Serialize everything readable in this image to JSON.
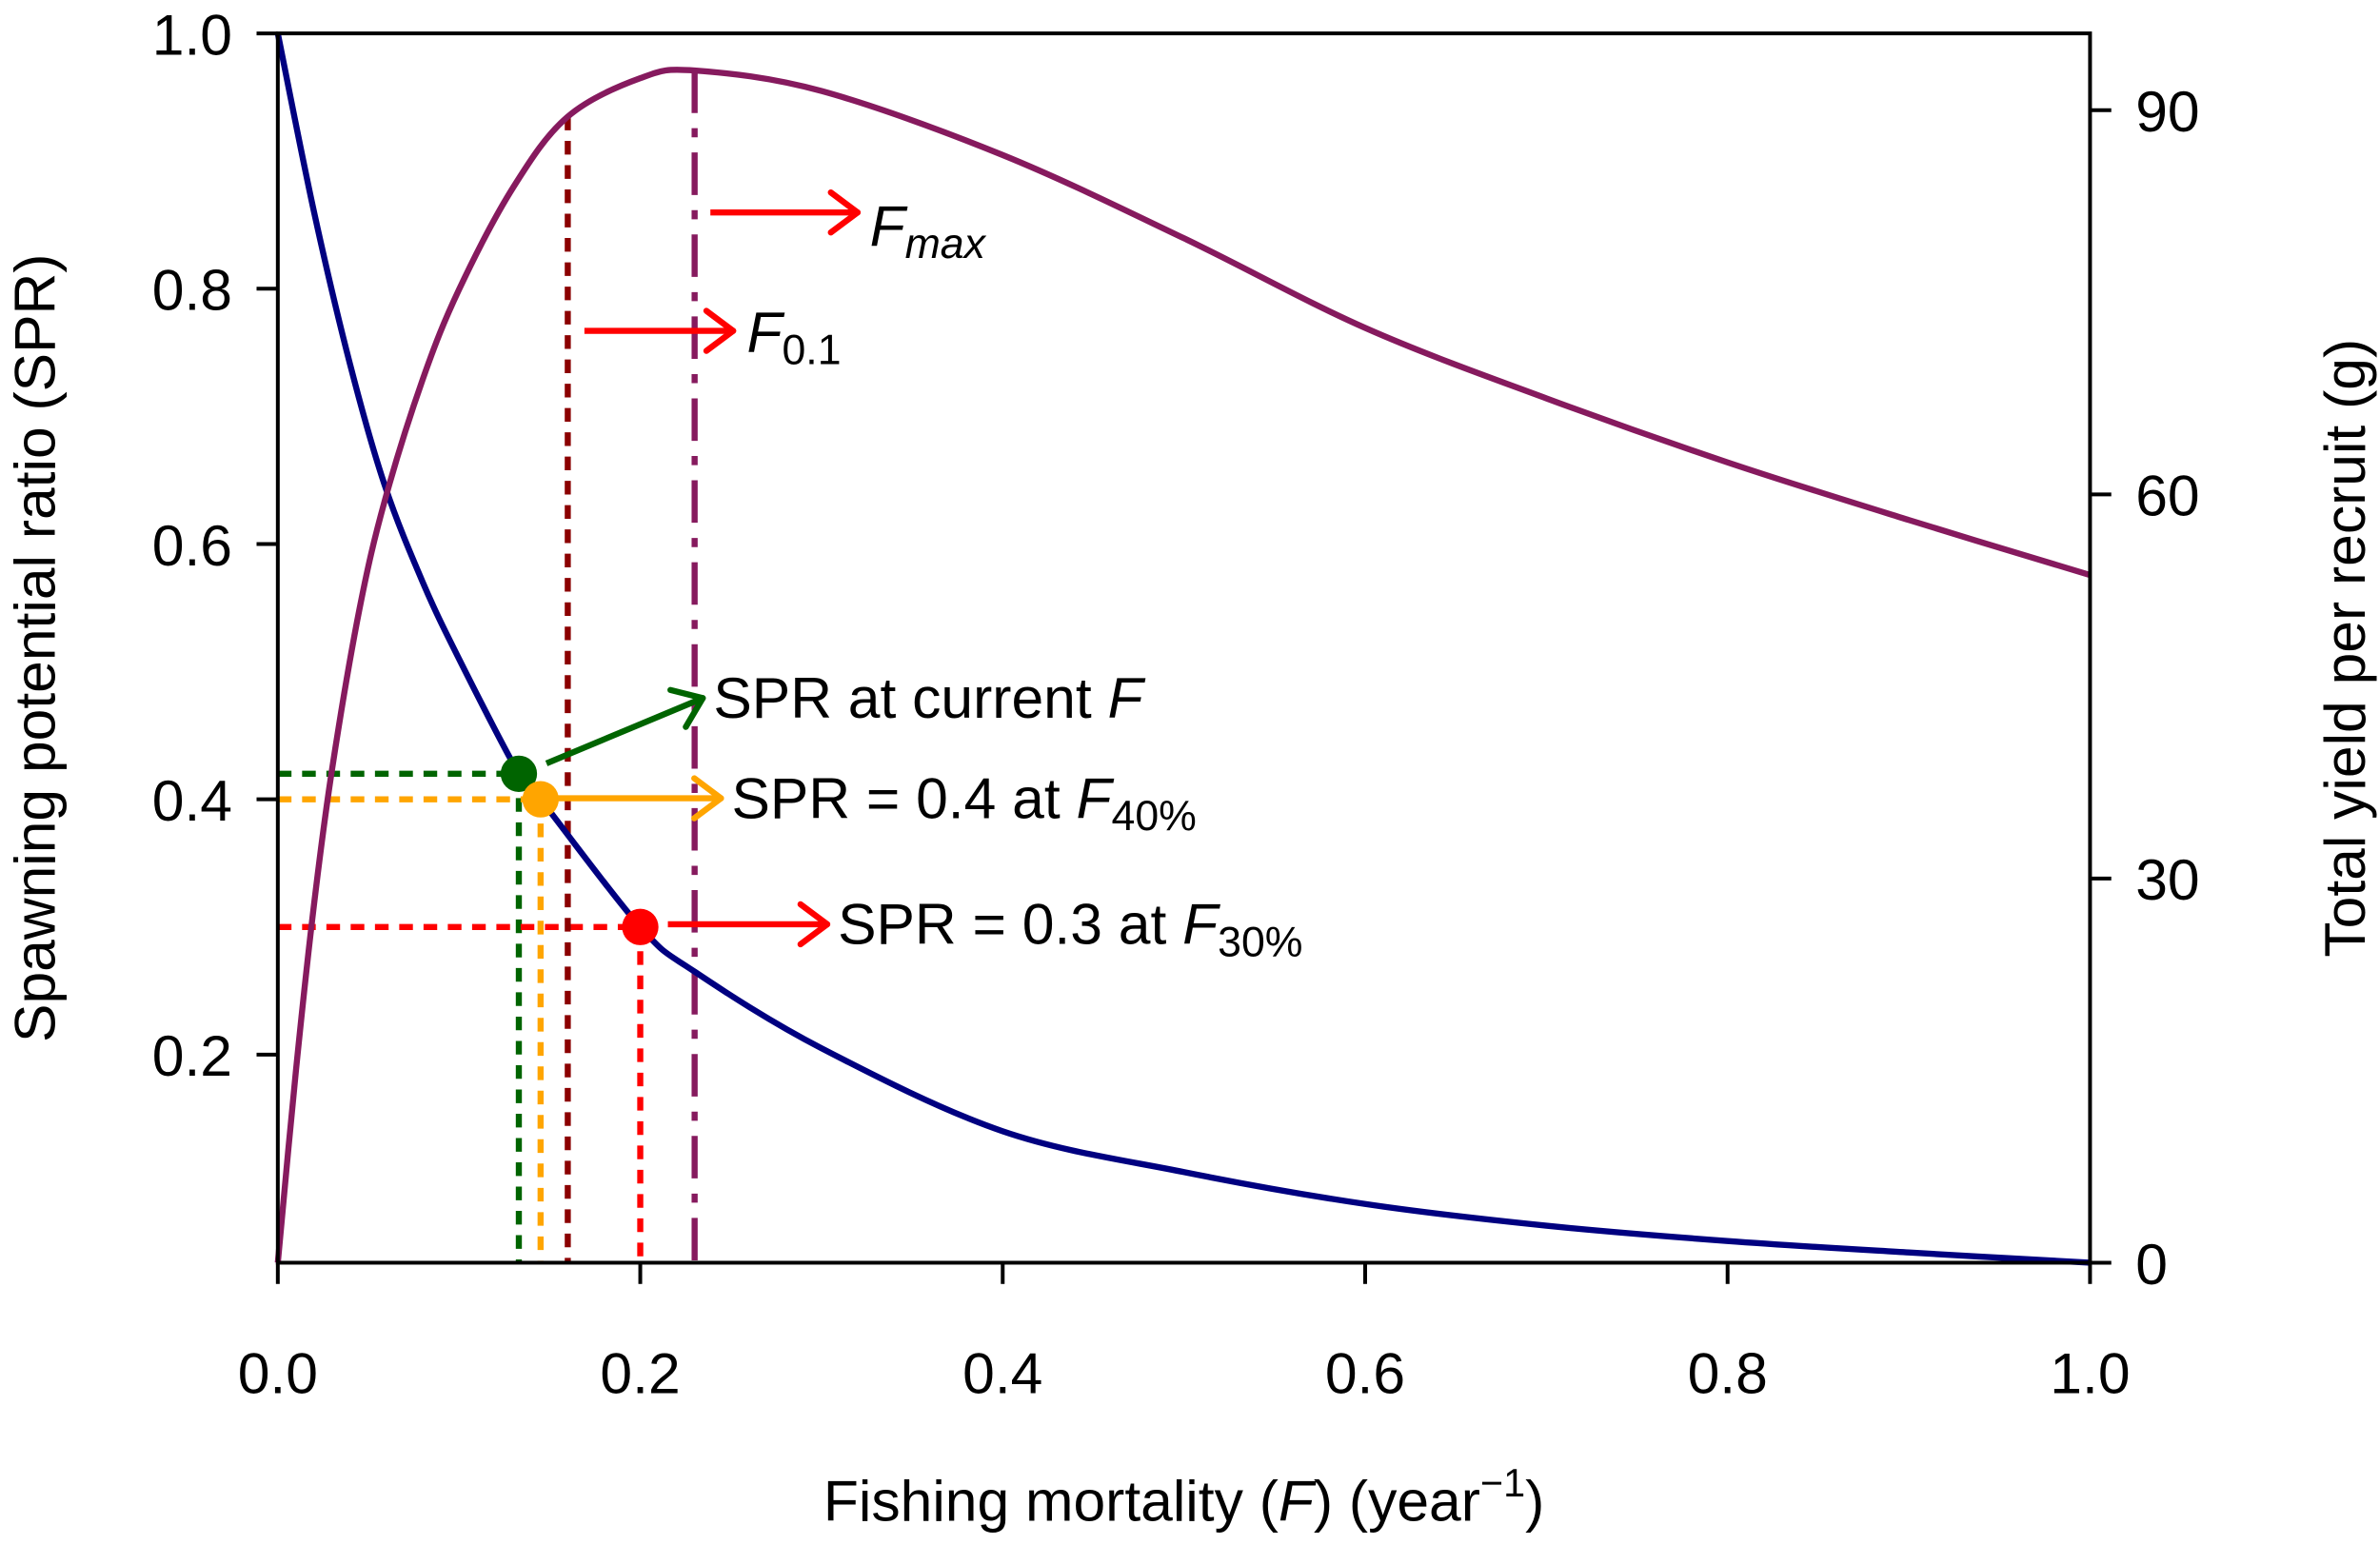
{
  "chart_data": {
    "type": "line",
    "xlabel": {
      "prefix": "Fishing mortality (",
      "italic": "F",
      "middle": ") (year",
      "sup": "−1",
      "suffix": ")"
    },
    "ylabel_left": "Spawning potential ratio (SPR)",
    "ylabel_right": "Total yield per recruit (g)",
    "xlim": [
      0,
      1.0
    ],
    "ylim_left": [
      0.037,
      1.0
    ],
    "ylim_right": [
      0,
      96
    ],
    "x_ticks": [
      "0.0",
      "0.2",
      "0.4",
      "0.6",
      "0.8",
      "1.0"
    ],
    "x_tick_values": [
      0,
      0.2,
      0.4,
      0.6,
      0.8,
      1.0
    ],
    "y_left_ticks": [
      "0.2",
      "0.4",
      "0.6",
      "0.8",
      "1.0"
    ],
    "y_left_tick_values": [
      0.2,
      0.4,
      0.6,
      0.8,
      1.0
    ],
    "y_right_ticks": [
      "0",
      "30",
      "60",
      "90"
    ],
    "y_right_tick_values": [
      0,
      30,
      60,
      90
    ],
    "grid": false,
    "series": [
      {
        "axis": "left",
        "color": "#000080",
        "x": [
          0,
          0.02,
          0.04,
          0.059,
          0.08,
          0.1,
          0.133,
          0.145,
          0.2,
          0.23,
          0.3,
          0.4,
          0.5,
          0.6,
          0.7,
          0.8,
          0.9,
          1.0
        ],
        "y": [
          1.0,
          0.86,
          0.74,
          0.646,
          0.57,
          0.51,
          0.42,
          0.4,
          0.3,
          0.265,
          0.205,
          0.14,
          0.108,
          0.083,
          0.066,
          0.054,
          0.045,
          0.037
        ]
      },
      {
        "axis": "right",
        "color": "#861A5E",
        "x": [
          0,
          0.01,
          0.02,
          0.03,
          0.045,
          0.059,
          0.08,
          0.1,
          0.13,
          0.16,
          0.2,
          0.23,
          0.3,
          0.4,
          0.5,
          0.6,
          0.7,
          0.8,
          0.9,
          1.0
        ],
        "y": [
          0,
          15,
          28,
          38.6,
          51,
          59.5,
          69,
          76,
          84,
          89.5,
          92.5,
          93.1,
          91.5,
          86.5,
          80,
          73,
          67.5,
          62.5,
          58,
          53.7
        ]
      }
    ],
    "reference_lines": [
      {
        "name": "F0.1",
        "F": 0.16,
        "yield": 89.5,
        "color": "#8B0000",
        "style": "dotted"
      },
      {
        "name": "Fmax",
        "F": 0.23,
        "yield": 93.1,
        "color": "#861A5E",
        "style": "dashed"
      }
    ],
    "points": [
      {
        "F": 0.133,
        "SPR": 0.42,
        "color": "#006400"
      },
      {
        "F": 0.145,
        "SPR": 0.4,
        "color": "#FFA500"
      },
      {
        "F": 0.2,
        "SPR": 0.3,
        "color": "#FF0000"
      }
    ],
    "annotations": {
      "fmax": {
        "main": "F",
        "sub": "max"
      },
      "f01": {
        "main": "F",
        "sub": "0.1"
      },
      "current": {
        "text": "SPR at current ",
        "italic": "F"
      },
      "f40": {
        "text": "SPR = 0.4 at ",
        "italic": "F",
        "sub": "40%"
      },
      "f30": {
        "text": "SPR = 0.3 at ",
        "italic": "F",
        "sub": "30%"
      }
    },
    "arrow_color": "#FF0000"
  }
}
